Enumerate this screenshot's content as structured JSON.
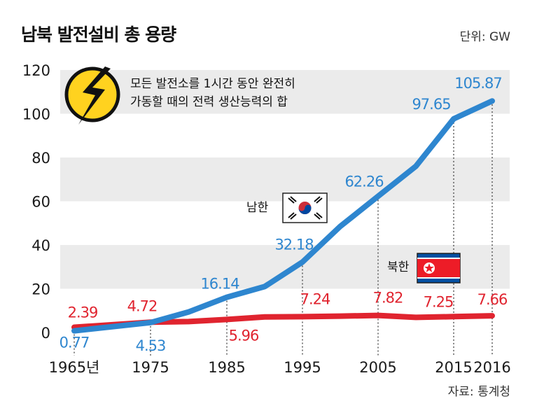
{
  "header": {
    "title": "남북 발전설비 총 용량",
    "unit": "단위: GW"
  },
  "note": {
    "line1": "모든 발전소를 1시간 동안 완전히",
    "line2": "가동할 때의 전력 생산능력의 합"
  },
  "footer": {
    "source": "자료: 통계청"
  },
  "colors": {
    "south": "#2e86cf",
    "north": "#e0242f",
    "band": "#ebebeb",
    "tick_text": "#1a1a1a"
  },
  "chart_data": {
    "type": "line",
    "xlim": [
      1965,
      2016
    ],
    "ylim": [
      0,
      120
    ],
    "yticks": [
      0,
      20,
      40,
      60,
      80,
      100,
      120
    ],
    "xticks": [
      {
        "year": 1965,
        "label": "1965년"
      },
      {
        "year": 1975,
        "label": "1975"
      },
      {
        "year": 1985,
        "label": "1985"
      },
      {
        "year": 1995,
        "label": "1995"
      },
      {
        "year": 2005,
        "label": "2005"
      },
      {
        "year": 2015,
        "label": "2015"
      },
      {
        "year": 2016,
        "label": "2016"
      }
    ],
    "series": [
      {
        "name": "남한",
        "color": "#2e86cf",
        "x": [
          1965,
          1975,
          1980,
          1985,
          1990,
          1995,
          2000,
          2005,
          2010,
          2015,
          2016
        ],
        "y": [
          0.77,
          4.53,
          9.4,
          16.14,
          21.0,
          32.18,
          48.5,
          62.26,
          76.0,
          97.65,
          105.87
        ]
      },
      {
        "name": "북한",
        "color": "#e0242f",
        "x": [
          1965,
          1975,
          1980,
          1985,
          1990,
          1995,
          2000,
          2005,
          2010,
          2015,
          2016
        ],
        "y": [
          2.39,
          4.72,
          5.0,
          5.96,
          7.1,
          7.24,
          7.5,
          7.82,
          6.9,
          7.25,
          7.66
        ]
      }
    ],
    "labels": {
      "south": [
        {
          "year": 1965,
          "text": "0.77"
        },
        {
          "year": 1975,
          "text": "4.53"
        },
        {
          "year": 1985,
          "text": "16.14"
        },
        {
          "year": 1995,
          "text": "32.18"
        },
        {
          "year": 2005,
          "text": "62.26"
        },
        {
          "year": 2015,
          "text": "97.65"
        },
        {
          "year": 2016,
          "text": "105.87"
        }
      ],
      "north": [
        {
          "year": 1965,
          "text": "2.39"
        },
        {
          "year": 1975,
          "text": "4.72"
        },
        {
          "year": 1985,
          "text": "5.96"
        },
        {
          "year": 1995,
          "text": "7.24"
        },
        {
          "year": 2005,
          "text": "7.82"
        },
        {
          "year": 2015,
          "text": "7.25"
        },
        {
          "year": 2016,
          "text": "7.66"
        }
      ]
    },
    "legend": {
      "south": "남한",
      "north": "북한"
    }
  }
}
